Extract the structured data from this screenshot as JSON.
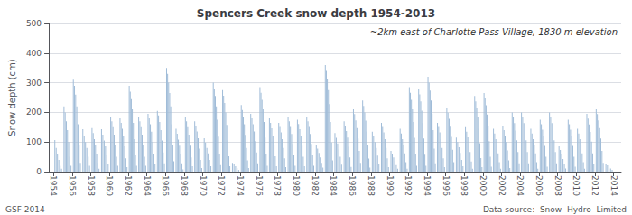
{
  "chart_data": {
    "type": "bar",
    "title": "Spencers Creek snow depth 1954-2013",
    "annotation": "~2km east of Charlotte Pass Village, 1830 m elevation",
    "footnotes": [
      "GSF 2014",
      "Data source:  Snow  Hydro  Limited"
    ],
    "ylabel": "Snow depth (cm)",
    "color": "#a0bcd8",
    "grid": true,
    "xlim": [
      1953.5,
      2014.8
    ],
    "xticks": [
      1954,
      1956,
      1958,
      1960,
      1962,
      1964,
      1966,
      1968,
      1970,
      1972,
      1974,
      1976,
      1978,
      1980,
      1982,
      1984,
      1986,
      1988,
      1990,
      1992,
      1994,
      1996,
      1998,
      2000,
      2002,
      2004,
      2006,
      2008,
      2010,
      2012,
      2014
    ],
    "ylim": [
      0,
      500
    ],
    "yticks": [
      0,
      100,
      200,
      300,
      400,
      500
    ],
    "x": [
      1954.142857,
      1954.285714,
      1954.428571,
      1954.571429,
      1954.714286,
      1954.857143,
      1955.125,
      1955.25,
      1955.375,
      1955.5,
      1955.625,
      1955.75,
      1955.875,
      1956.125,
      1956.25,
      1956.375,
      1956.5,
      1956.625,
      1956.75,
      1956.875,
      1957.142857,
      1957.285714,
      1957.428571,
      1957.571429,
      1957.714286,
      1957.857143,
      1958.125,
      1958.25,
      1958.375,
      1958.5,
      1958.625,
      1958.75,
      1958.875,
      1959.142857,
      1959.285714,
      1959.428571,
      1959.571429,
      1959.714286,
      1959.857143,
      1960.125,
      1960.25,
      1960.375,
      1960.5,
      1960.625,
      1960.75,
      1960.875,
      1961.125,
      1961.25,
      1961.375,
      1961.5,
      1961.625,
      1961.75,
      1961.875,
      1962.111111,
      1962.222222,
      1962.333333,
      1962.444444,
      1962.555556,
      1962.666667,
      1962.777778,
      1962.888889,
      1963.125,
      1963.25,
      1963.375,
      1963.5,
      1963.625,
      1963.75,
      1963.875,
      1964.125,
      1964.25,
      1964.375,
      1964.5,
      1964.625,
      1964.75,
      1964.875,
      1965.125,
      1965.25,
      1965.375,
      1965.5,
      1965.625,
      1965.75,
      1965.875,
      1966.111111,
      1966.222222,
      1966.333333,
      1966.444444,
      1966.555556,
      1966.666667,
      1966.777778,
      1966.888889,
      1967.125,
      1967.25,
      1967.375,
      1967.5,
      1967.625,
      1967.75,
      1967.875,
      1968.125,
      1968.25,
      1968.375,
      1968.5,
      1968.625,
      1968.75,
      1968.875,
      1969.125,
      1969.25,
      1969.375,
      1969.5,
      1969.625,
      1969.75,
      1969.875,
      1970.142857,
      1970.285714,
      1970.428571,
      1970.571429,
      1970.714286,
      1970.857143,
      1971.111111,
      1971.222222,
      1971.333333,
      1971.444444,
      1971.555556,
      1971.666667,
      1971.777778,
      1971.888889,
      1972.111111,
      1972.222222,
      1972.333333,
      1972.444444,
      1972.555556,
      1972.666667,
      1972.777778,
      1972.888889,
      1973.166667,
      1973.333333,
      1973.5,
      1973.666667,
      1973.833333,
      1974.111111,
      1974.222222,
      1974.333333,
      1974.444444,
      1974.555556,
      1974.666667,
      1974.777778,
      1974.888889,
      1975.125,
      1975.25,
      1975.375,
      1975.5,
      1975.625,
      1975.75,
      1975.875,
      1976.111111,
      1976.222222,
      1976.333333,
      1976.444444,
      1976.555556,
      1976.666667,
      1976.777778,
      1976.888889,
      1977.125,
      1977.25,
      1977.375,
      1977.5,
      1977.625,
      1977.75,
      1977.875,
      1978.125,
      1978.25,
      1978.375,
      1978.5,
      1978.625,
      1978.75,
      1978.875,
      1979.125,
      1979.25,
      1979.375,
      1979.5,
      1979.625,
      1979.75,
      1979.875,
      1980.125,
      1980.25,
      1980.375,
      1980.5,
      1980.625,
      1980.75,
      1980.875,
      1981.125,
      1981.25,
      1981.375,
      1981.5,
      1981.625,
      1981.75,
      1981.875,
      1982.142857,
      1982.285714,
      1982.428571,
      1982.571429,
      1982.714286,
      1982.857143,
      1983.111111,
      1983.222222,
      1983.333333,
      1983.444444,
      1983.555556,
      1983.666667,
      1983.777778,
      1983.888889,
      1984.142857,
      1984.285714,
      1984.428571,
      1984.571429,
      1984.714286,
      1984.857143,
      1985.125,
      1985.25,
      1985.375,
      1985.5,
      1985.625,
      1985.75,
      1985.875,
      1986.125,
      1986.25,
      1986.375,
      1986.5,
      1986.625,
      1986.75,
      1986.875,
      1987.111111,
      1987.222222,
      1987.333333,
      1987.444444,
      1987.555556,
      1987.666667,
      1987.777778,
      1987.888889,
      1988.142857,
      1988.285714,
      1988.428571,
      1988.571429,
      1988.714286,
      1988.857143,
      1989.125,
      1989.25,
      1989.375,
      1989.5,
      1989.625,
      1989.75,
      1989.875,
      1990.142857,
      1990.285714,
      1990.428571,
      1990.571429,
      1990.714286,
      1990.857143,
      1991.125,
      1991.25,
      1991.375,
      1991.5,
      1991.625,
      1991.75,
      1991.875,
      1992.111111,
      1992.222222,
      1992.333333,
      1992.444444,
      1992.555556,
      1992.666667,
      1992.777778,
      1992.888889,
      1993.111111,
      1993.222222,
      1993.333333,
      1993.444444,
      1993.555556,
      1993.666667,
      1993.777778,
      1993.888889,
      1994.111111,
      1994.222222,
      1994.333333,
      1994.444444,
      1994.555556,
      1994.666667,
      1994.777778,
      1994.888889,
      1995.125,
      1995.25,
      1995.375,
      1995.5,
      1995.625,
      1995.75,
      1995.875,
      1996.125,
      1996.25,
      1996.375,
      1996.5,
      1996.625,
      1996.75,
      1996.875,
      1997.142857,
      1997.285714,
      1997.428571,
      1997.571429,
      1997.714286,
      1997.857143,
      1998.125,
      1998.25,
      1998.375,
      1998.5,
      1998.625,
      1998.75,
      1998.875,
      1999.111111,
      1999.222222,
      1999.333333,
      1999.444444,
      1999.555556,
      1999.666667,
      1999.777778,
      1999.888889,
      2000.111111,
      2000.222222,
      2000.333333,
      2000.444444,
      2000.555556,
      2000.666667,
      2000.777778,
      2000.888889,
      2001.125,
      2001.25,
      2001.375,
      2001.5,
      2001.625,
      2001.75,
      2001.875,
      2002.125,
      2002.25,
      2002.375,
      2002.5,
      2002.625,
      2002.75,
      2002.875,
      2003.125,
      2003.25,
      2003.375,
      2003.5,
      2003.625,
      2003.75,
      2003.875,
      2004.125,
      2004.25,
      2004.375,
      2004.5,
      2004.625,
      2004.75,
      2004.875,
      2005.125,
      2005.25,
      2005.375,
      2005.5,
      2005.625,
      2005.75,
      2005.875,
      2006.125,
      2006.25,
      2006.375,
      2006.5,
      2006.625,
      2006.75,
      2006.875,
      2007.125,
      2007.25,
      2007.375,
      2007.5,
      2007.625,
      2007.75,
      2007.875,
      2008.142857,
      2008.285714,
      2008.428571,
      2008.571429,
      2008.714286,
      2008.857143,
      2009.125,
      2009.25,
      2009.375,
      2009.5,
      2009.625,
      2009.75,
      2009.875,
      2010.125,
      2010.25,
      2010.375,
      2010.5,
      2010.625,
      2010.75,
      2010.875,
      2011.125,
      2011.25,
      2011.375,
      2011.5,
      2011.625,
      2011.75,
      2011.875,
      2012.125,
      2012.25,
      2012.375,
      2012.5,
      2012.625,
      2012.75,
      2012.875,
      2013.166667,
      2013.333333,
      2013.5,
      2013.666667,
      2013.833333,
      2014.5
    ],
    "values": [
      107,
      80,
      60,
      40,
      20,
      10,
      220,
      200,
      170,
      140,
      100,
      50,
      20,
      310,
      290,
      260,
      220,
      160,
      90,
      30,
      143,
      120,
      100,
      80,
      50,
      20,
      147,
      130,
      110,
      90,
      60,
      30,
      10,
      143,
      125,
      105,
      85,
      55,
      25,
      185,
      170,
      150,
      125,
      90,
      50,
      20,
      180,
      165,
      145,
      120,
      85,
      45,
      15,
      290,
      270,
      245,
      210,
      165,
      110,
      55,
      20,
      185,
      170,
      150,
      125,
      90,
      50,
      20,
      195,
      180,
      160,
      135,
      100,
      60,
      25,
      205,
      190,
      168,
      140,
      105,
      65,
      28,
      350,
      330,
      300,
      265,
      220,
      160,
      90,
      35,
      145,
      128,
      108,
      88,
      58,
      28,
      8,
      185,
      170,
      150,
      125,
      88,
      48,
      18,
      170,
      155,
      136,
      113,
      78,
      40,
      12,
      113,
      98,
      80,
      62,
      40,
      18,
      300,
      280,
      255,
      220,
      175,
      118,
      60,
      22,
      275,
      256,
      232,
      200,
      158,
      105,
      52,
      18,
      30,
      25,
      18,
      12,
      6,
      225,
      208,
      186,
      160,
      124,
      80,
      38,
      12,
      195,
      180,
      160,
      136,
      103,
      65,
      28,
      285,
      266,
      242,
      210,
      168,
      115,
      58,
      20,
      180,
      165,
      146,
      122,
      90,
      52,
      18,
      165,
      151,
      133,
      110,
      80,
      45,
      15,
      185,
      170,
      151,
      127,
      94,
      55,
      20,
      175,
      161,
      143,
      120,
      88,
      50,
      18,
      185,
      170,
      151,
      127,
      94,
      55,
      20,
      90,
      78,
      63,
      48,
      30,
      14,
      360,
      340,
      312,
      275,
      228,
      168,
      98,
      38,
      130,
      114,
      95,
      75,
      50,
      24,
      170,
      155,
      137,
      115,
      84,
      48,
      16,
      210,
      194,
      173,
      147,
      112,
      70,
      30,
      240,
      222,
      200,
      172,
      136,
      90,
      44,
      14,
      135,
      119,
      100,
      80,
      54,
      26,
      165,
      151,
      133,
      110,
      80,
      45,
      15,
      70,
      60,
      48,
      36,
      22,
      10,
      145,
      129,
      110,
      89,
      62,
      32,
      10,
      285,
      266,
      242,
      210,
      168,
      114,
      58,
      20,
      280,
      261,
      237,
      206,
      164,
      112,
      57,
      20,
      320,
      300,
      274,
      240,
      196,
      140,
      78,
      28,
      165,
      151,
      133,
      110,
      80,
      45,
      15,
      215,
      199,
      178,
      152,
      117,
      74,
      32,
      115,
      100,
      82,
      63,
      40,
      18,
      150,
      135,
      116,
      94,
      66,
      34,
      10,
      255,
      237,
      214,
      184,
      145,
      96,
      46,
      15,
      265,
      247,
      224,
      193,
      153,
      103,
      50,
      17,
      145,
      129,
      110,
      89,
      62,
      32,
      10,
      155,
      140,
      122,
      100,
      72,
      38,
      12,
      200,
      184,
      164,
      139,
      106,
      66,
      28,
      200,
      184,
      164,
      139,
      106,
      66,
      28,
      145,
      129,
      110,
      89,
      62,
      32,
      10,
      175,
      160,
      142,
      119,
      87,
      50,
      17,
      200,
      184,
      164,
      139,
      106,
      66,
      28,
      85,
      73,
      58,
      43,
      26,
      11,
      175,
      160,
      142,
      119,
      87,
      50,
      17,
      145,
      129,
      110,
      89,
      62,
      32,
      10,
      195,
      179,
      159,
      134,
      101,
      62,
      25,
      210,
      194,
      173,
      147,
      112,
      70,
      30,
      25,
      21,
      16,
      11,
      6,
      0
    ]
  }
}
